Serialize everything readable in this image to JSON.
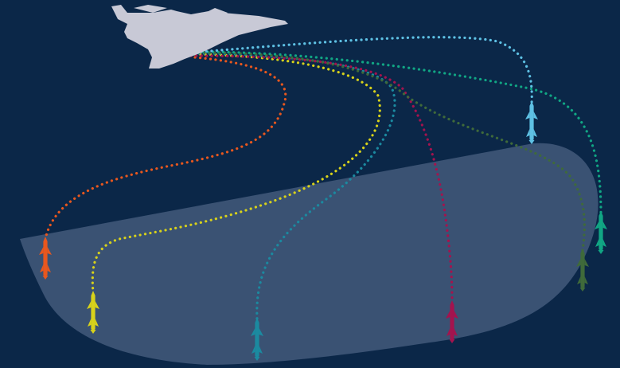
{
  "background_color": "#0b2748",
  "zone_color": "#3d5476",
  "aircraft": {
    "icon": "fighter-jet-icon",
    "color": "#c8c9d6"
  },
  "trajectories": [
    {
      "id": "orange",
      "color": "#e8571e",
      "icon": "missile-icon"
    },
    {
      "id": "yellow",
      "color": "#d8d21a",
      "icon": "missile-icon"
    },
    {
      "id": "teal",
      "color": "#1b8aa0",
      "icon": "missile-icon"
    },
    {
      "id": "crimson",
      "color": "#a4134e",
      "icon": "missile-icon"
    },
    {
      "id": "olive",
      "color": "#3f6a3a",
      "icon": "missile-icon"
    },
    {
      "id": "green",
      "color": "#11a684",
      "icon": "missile-icon"
    },
    {
      "id": "sky",
      "color": "#5ec1e4",
      "icon": "missile-icon"
    }
  ]
}
